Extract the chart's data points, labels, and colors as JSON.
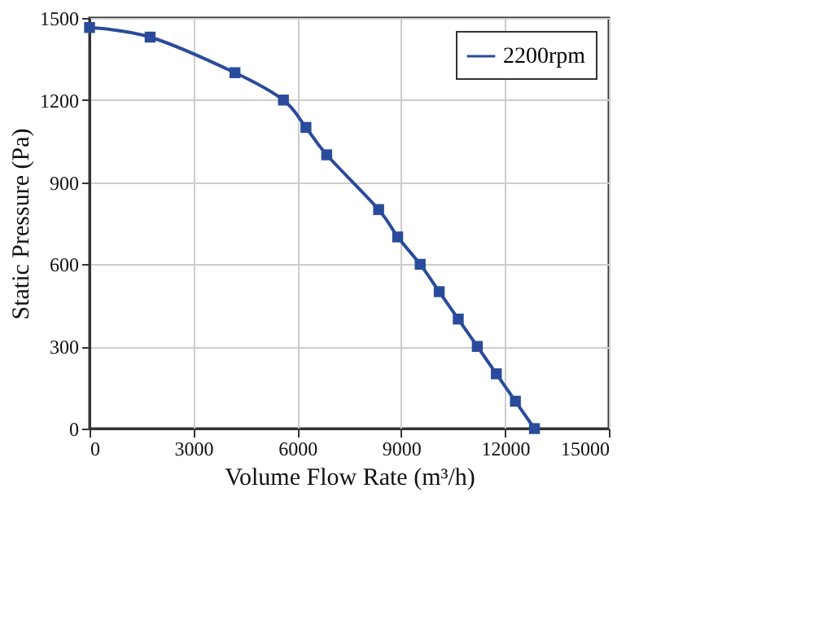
{
  "chart_data": {
    "type": "line",
    "xlabel": "Volume Flow Rate (m³/h)",
    "ylabel": "Static Pressure (Pa)",
    "x": [
      0,
      1750,
      4200,
      5600,
      6250,
      6850,
      8350,
      8900,
      9550,
      10100,
      10650,
      11200,
      11750,
      12300,
      12850
    ],
    "series": [
      {
        "name": "2200rpm",
        "color": "#2a4b9b",
        "values": [
          1465,
          1430,
          1300,
          1200,
          1100,
          1000,
          800,
          700,
          600,
          500,
          400,
          300,
          200,
          100,
          0
        ]
      }
    ],
    "xlim": [
      0,
      15000
    ],
    "xticks": [
      0,
      3000,
      6000,
      9000,
      12000,
      15000
    ],
    "ylim": [
      0,
      1500
    ],
    "yticks": [
      0,
      300,
      600,
      900,
      1200,
      1500
    ],
    "grid": true,
    "legend": "top right",
    "marker": "square",
    "line_style": "solid"
  }
}
